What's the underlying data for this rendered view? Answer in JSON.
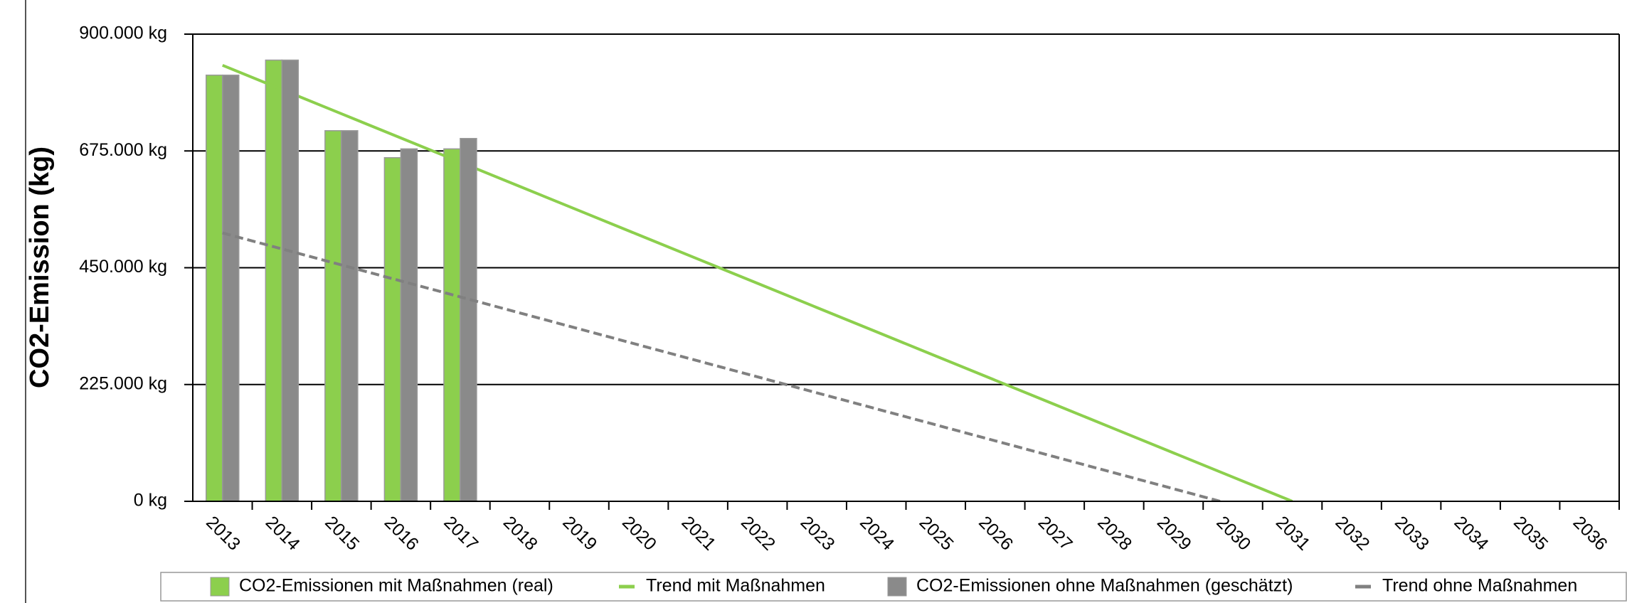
{
  "chart_data": {
    "type": "bar_line",
    "y_label": "CO2-Emission (kg)",
    "categories": [
      "2013",
      "2014",
      "2015",
      "2016",
      "2017",
      "2018",
      "2019",
      "2020",
      "2021",
      "2022",
      "2023",
      "2024",
      "2025",
      "2026",
      "2027",
      "2028",
      "2029",
      "2030",
      "2031",
      "2032",
      "2033",
      "2034",
      "2035",
      "2036"
    ],
    "series": [
      {
        "name": "CO2-Emissionen mit Maßnahmen (real)",
        "kind": "bar",
        "color": "#8ccf4d",
        "values": [
          821000,
          850000,
          714000,
          662000,
          679000,
          null,
          null,
          null,
          null,
          null,
          null,
          null,
          null,
          null,
          null,
          null,
          null,
          null,
          null,
          null,
          null,
          null,
          null,
          null
        ]
      },
      {
        "name": "Trend mit Maßnahmen",
        "kind": "line",
        "color": "#8ccf4d",
        "dash": false,
        "values": [
          840000,
          793333,
          746667,
          700000,
          653333,
          606667,
          560000,
          513333,
          466667,
          420000,
          373333,
          326667,
          280000,
          233333,
          186667,
          140000,
          93333,
          46667,
          0,
          null,
          null,
          null,
          null,
          null
        ]
      },
      {
        "name": "CO2-Emissionen ohne Maßnahmen (geschätzt)",
        "kind": "bar",
        "color": "#8a8a8a",
        "values": [
          821000,
          850000,
          714000,
          679000,
          699000,
          null,
          null,
          null,
          null,
          null,
          null,
          null,
          null,
          null,
          null,
          null,
          null,
          null,
          null,
          null,
          null,
          null,
          null,
          null
        ]
      },
      {
        "name": "Trend ohne Maßnahmen",
        "kind": "line",
        "color": "#808080",
        "dash": true,
        "values": [
          517000,
          486200,
          455400,
          424600,
          393800,
          363000,
          332200,
          301400,
          270600,
          239800,
          209000,
          178200,
          147400,
          116600,
          85800,
          55000,
          24200,
          -6600,
          null,
          null,
          null,
          null,
          null,
          null
        ]
      }
    ],
    "ylim": [
      0,
      900000
    ],
    "yticks": [
      {
        "value": 0,
        "label": "0 kg"
      },
      {
        "value": 225000,
        "label": "225.000 kg"
      },
      {
        "value": 450000,
        "label": "450.000 kg"
      },
      {
        "value": 675000,
        "label": "675.000 kg"
      },
      {
        "value": 900000,
        "label": "900.000 kg"
      }
    ],
    "grid": true,
    "legend": "bottom"
  }
}
